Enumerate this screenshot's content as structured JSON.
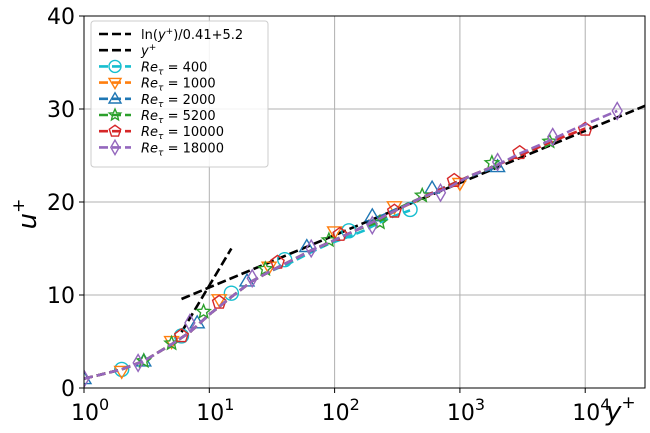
{
  "chart_data": {
    "type": "line",
    "xscale": "log",
    "xlim": [
      1,
      30000
    ],
    "ylim": [
      0,
      40
    ],
    "xlabel": "y+",
    "ylabel": "u+",
    "grid": true,
    "legend_position": "top-left",
    "x_ticks": [
      1,
      10,
      100,
      1000,
      10000
    ],
    "x_tick_labels": [
      {
        "base": "10",
        "exp": "0"
      },
      {
        "base": "10",
        "exp": "1"
      },
      {
        "base": "10",
        "exp": "2"
      },
      {
        "base": "10",
        "exp": "3"
      },
      {
        "base": "10",
        "exp": "4"
      }
    ],
    "y_ticks": [
      0,
      10,
      20,
      30,
      40
    ],
    "y_tick_labels": [
      "0",
      "10",
      "20",
      "30",
      "40"
    ],
    "reference_lines": [
      {
        "name": "ln(y+)/0.41+5.2",
        "label_main": "ln(",
        "label_italic": "y",
        "label_sup": "+",
        "label_tail": ")/0.41+5.2",
        "color": "#000000",
        "x": [
          6,
          30000
        ],
        "y": [
          9.57,
          30.34
        ]
      },
      {
        "name": "y+",
        "label_main": "",
        "label_italic": "y",
        "label_sup": "+",
        "label_tail": "",
        "color": "#000000",
        "x": [
          6,
          15
        ],
        "y": [
          6,
          15
        ]
      }
    ],
    "series": [
      {
        "name": "Re_tau = 400",
        "label_sub": "τ",
        "label_tail": " = 400",
        "color": "#17becf",
        "marker": "circle",
        "x": [
          1,
          2,
          3,
          5,
          7,
          10,
          15,
          22,
          30,
          45,
          65,
          90,
          120,
          170,
          230,
          300,
          400
        ],
        "y": [
          1.0,
          2.0,
          2.9,
          4.7,
          6.0,
          7.9,
          9.8,
          11.5,
          12.5,
          13.5,
          14.6,
          15.5,
          16.1,
          16.9,
          17.8,
          18.5,
          19.1
        ],
        "marker_x": [
          2,
          6,
          15,
          40,
          130,
          400
        ],
        "marker_y": [
          2.0,
          5.6,
          10.2,
          13.8,
          16.9,
          19.2
        ]
      },
      {
        "name": "Re_tau = 1000",
        "label_sub": "τ",
        "label_tail": " = 1000",
        "color": "#ff7f0e",
        "marker": "triangle-down",
        "x": [
          1,
          2,
          3,
          5,
          7,
          10,
          15,
          22,
          30,
          45,
          65,
          100,
          150,
          220,
          330,
          500,
          700,
          1000
        ],
        "y": [
          1.0,
          2.0,
          2.9,
          4.7,
          6.0,
          7.9,
          9.8,
          11.5,
          12.5,
          13.7,
          14.8,
          15.9,
          17.0,
          18.1,
          19.3,
          20.4,
          21.3,
          22.0
        ],
        "marker_x": [
          2,
          5,
          12,
          30,
          100,
          300,
          1000
        ],
        "marker_y": [
          1.8,
          5.0,
          9.5,
          13.0,
          16.8,
          19.5,
          22.0
        ]
      },
      {
        "name": "Re_tau = 2000",
        "label_sub": "τ",
        "label_tail": " = 2000",
        "color": "#1f77b4",
        "marker": "triangle-up",
        "x": [
          1,
          2,
          3,
          5,
          7,
          10,
          15,
          22,
          30,
          45,
          65,
          100,
          150,
          220,
          330,
          500,
          700,
          1000,
          1400,
          2000
        ],
        "y": [
          1.0,
          2.0,
          2.9,
          4.7,
          6.0,
          7.9,
          9.8,
          11.5,
          12.5,
          13.7,
          14.8,
          15.9,
          17.0,
          18.3,
          19.4,
          20.5,
          21.4,
          22.3,
          23.1,
          23.8
        ],
        "marker_x": [
          1,
          3,
          8,
          20,
          60,
          200,
          600,
          2000
        ],
        "marker_y": [
          1.0,
          2.9,
          7.0,
          11.5,
          15.2,
          18.5,
          21.5,
          23.8
        ]
      },
      {
        "name": "Re_tau = 5200",
        "label_sub": "τ",
        "label_tail": " = 5200",
        "color": "#2ca02c",
        "marker": "star",
        "x": [
          1,
          2,
          3,
          5,
          7,
          10,
          15,
          22,
          30,
          45,
          65,
          100,
          150,
          220,
          330,
          500,
          800,
          1200,
          2000,
          3000,
          4500,
          5200
        ],
        "y": [
          1.0,
          2.0,
          2.9,
          4.7,
          6.0,
          7.9,
          9.8,
          11.5,
          12.5,
          13.7,
          14.8,
          15.9,
          17.0,
          17.8,
          19.4,
          20.5,
          21.7,
          22.8,
          24.0,
          25.1,
          26.1,
          26.5
        ],
        "marker_x": [
          3,
          5,
          9,
          28,
          90,
          230,
          500,
          1800,
          5200
        ],
        "marker_y": [
          2.9,
          4.8,
          8.2,
          12.8,
          15.9,
          17.8,
          20.7,
          24.2,
          26.5
        ]
      },
      {
        "name": "Re_tau = 10000",
        "label_sub": "τ",
        "label_tail": " = 10000",
        "color": "#d62728",
        "marker": "pentagon",
        "x": [
          1,
          2,
          3,
          5,
          7,
          10,
          15,
          22,
          30,
          45,
          65,
          100,
          150,
          220,
          330,
          500,
          800,
          1200,
          2000,
          3000,
          5000,
          7000,
          10000
        ],
        "y": [
          1.0,
          2.0,
          2.9,
          4.7,
          6.0,
          7.9,
          9.8,
          11.5,
          12.5,
          13.7,
          14.8,
          15.9,
          17.0,
          18.1,
          19.3,
          20.5,
          21.7,
          22.8,
          24.0,
          25.0,
          26.3,
          27.1,
          27.9
        ],
        "marker_x": [
          6,
          12,
          35,
          110,
          300,
          900,
          3000,
          10000
        ],
        "marker_y": [
          5.6,
          9.2,
          13.5,
          16.5,
          19.0,
          22.3,
          25.3,
          27.8
        ]
      },
      {
        "name": "Re_tau = 18000",
        "label_sub": "τ",
        "label_tail": " = 18000",
        "color": "#9467bd",
        "marker": "diamond",
        "x": [
          1,
          2,
          3,
          5,
          7,
          10,
          15,
          22,
          30,
          45,
          65,
          100,
          150,
          220,
          330,
          500,
          800,
          1200,
          2000,
          3000,
          5000,
          8000,
          12000,
          18000
        ],
        "y": [
          1.0,
          2.0,
          2.9,
          4.7,
          6.0,
          7.9,
          9.8,
          11.5,
          12.5,
          13.7,
          14.8,
          15.9,
          17.0,
          18.1,
          19.3,
          20.5,
          21.5,
          22.8,
          24.0,
          25.2,
          26.5,
          27.8,
          28.8,
          29.8
        ],
        "marker_x": [
          1,
          2.7,
          7,
          22,
          65,
          200,
          700,
          2000,
          5500,
          18000
        ],
        "marker_y": [
          1.0,
          2.7,
          7.0,
          11.8,
          15.0,
          17.5,
          21.0,
          24.3,
          27.0,
          29.8
        ]
      }
    ]
  }
}
